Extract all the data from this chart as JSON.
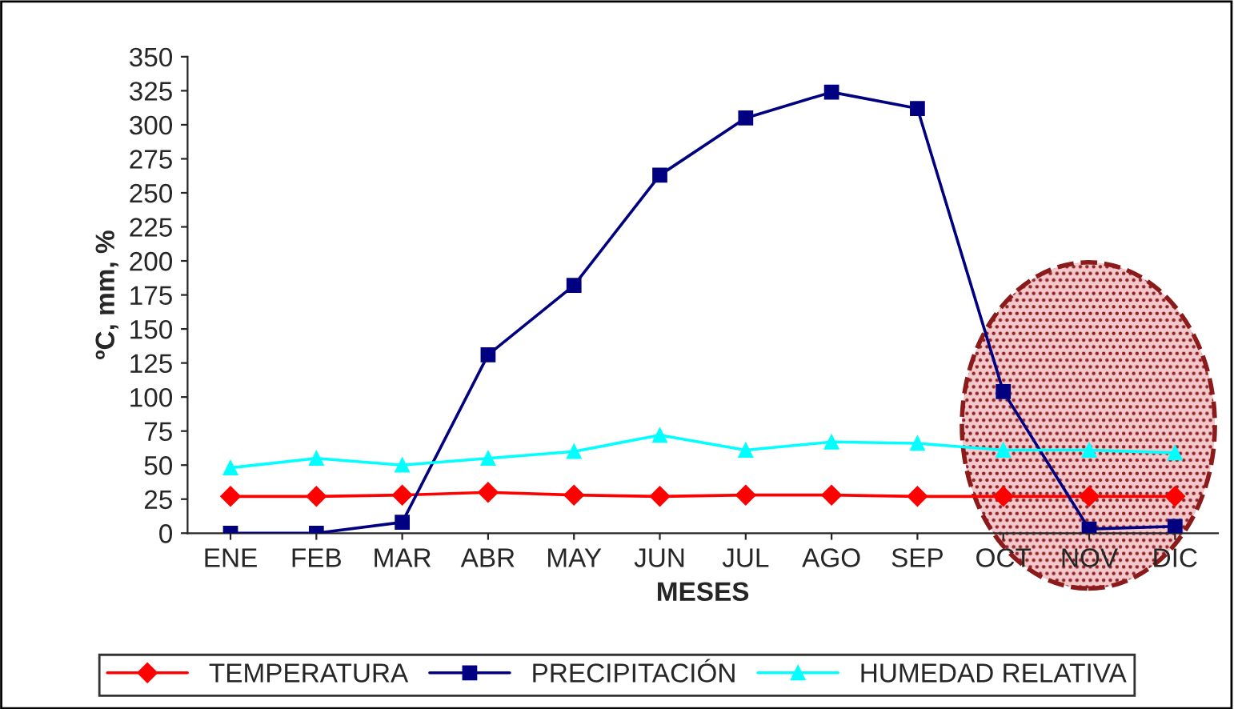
{
  "chart_data": {
    "type": "line",
    "xlabel": "MESES",
    "ylabel": "ºC, mm, %",
    "categories": [
      "ENE",
      "FEB",
      "MAR",
      "ABR",
      "MAY",
      "JUN",
      "JUL",
      "AGO",
      "SEP",
      "OCT",
      "NOV",
      "DIC"
    ],
    "series": [
      {
        "name": "TEMPERATURA",
        "color": "#ff0000",
        "marker": "diamond",
        "values": [
          27,
          27,
          28,
          30,
          28,
          27,
          28,
          28,
          27,
          27,
          27,
          27
        ]
      },
      {
        "name": "PRECIPITACIÓN",
        "color": "#000080",
        "marker": "square",
        "values": [
          0,
          0,
          8,
          131,
          182,
          263,
          305,
          324,
          312,
          104,
          3,
          5
        ]
      },
      {
        "name": "HUMEDAD RELATIVA",
        "color": "#00ffff",
        "marker": "triangle",
        "values": [
          48,
          55,
          50,
          55,
          60,
          72,
          61,
          67,
          66,
          61,
          61,
          59
        ]
      }
    ],
    "ylim": [
      0,
      350
    ],
    "yticks": [
      0,
      25,
      50,
      75,
      100,
      125,
      150,
      175,
      200,
      225,
      250,
      275,
      300,
      325,
      350
    ],
    "grid": false,
    "legend": "bottom",
    "line_style": "solid"
  }
}
